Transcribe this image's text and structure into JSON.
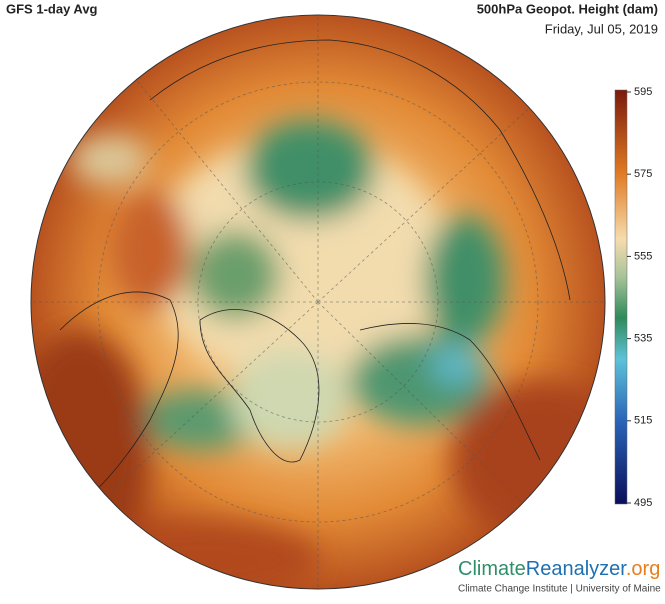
{
  "header": {
    "title": "GFS 1-day Avg",
    "variable": "500hPa Geopot. Height (dam)",
    "date": "Friday, Jul 05, 2019"
  },
  "legend": {
    "range": [
      495,
      595
    ],
    "ticks": [
      595,
      575,
      555,
      535,
      515,
      495
    ]
  },
  "footer": {
    "brand_part1": "Climate",
    "brand_part2": "Reanalyzer",
    "brand_part3": ".org",
    "credit": "Climate Change Institute | University of Maine"
  }
}
